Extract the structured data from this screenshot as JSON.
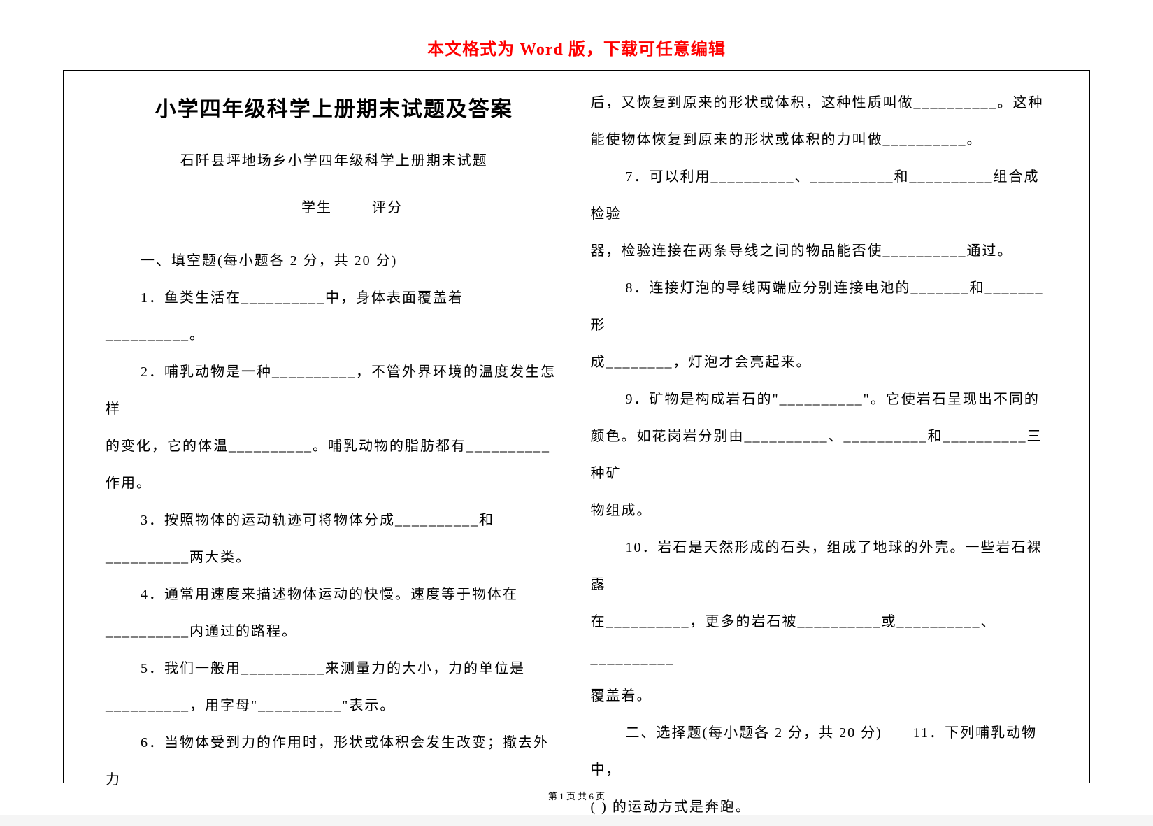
{
  "header_note": "本文格式为 Word 版，下载可任意编辑",
  "title": "小学四年级科学上册期末试题及答案",
  "subtitle": "石阡县坪地场乡小学四年级科学上册期末试题",
  "meta_student": "学生",
  "meta_score": "评分",
  "section1_header": "一、填空题(每小题各 2 分，共 20 分)",
  "q1": "1．鱼类生活在__________中，身体表面覆盖着__________。",
  "q2a": "2．哺乳动物是一种__________，不管外界环境的温度发生怎样",
  "q2b": "的变化，它的体温__________。哺乳动物的脂肪都有__________作用。",
  "q3a": "3．按照物体的运动轨迹可将物体分成__________和",
  "q3b": "__________两大类。",
  "q4a": "4．通常用速度来描述物体运动的快慢。速度等于物体在",
  "q4b": "__________内通过的路程。",
  "q5a": "5．我们一般用__________来测量力的大小，力的单位是",
  "q5b": "__________，用字母\"__________\"表示。",
  "q6a": "6．当物体受到力的作用时，形状或体积会发生改变；撤去外力",
  "q6b": "后，又恢复到原来的形状或体积，这种性质叫做__________。这种",
  "q6c": "能使物体恢复到原来的形状或体积的力叫做__________。",
  "q7a": "7．可以利用__________、__________和__________组合成检验",
  "q7b": "器，检验连接在两条导线之间的物品能否使__________通过。",
  "q8a": "8．连接灯泡的导线两端应分别连接电池的_______和_______形",
  "q8b": "成________，灯泡才会亮起来。",
  "q9a": "9．矿物是构成岩石的\"__________\"。它使岩石呈现出不同的",
  "q9b": "颜色。如花岗岩分别由__________、__________和__________三种矿",
  "q9c": "物组成。",
  "q10a": "10．岩石是天然形成的石头，组成了地球的外壳。一些岩石裸露",
  "q10b": "在__________，更多的岩石被__________或__________、__________",
  "q10c": "覆盖着。",
  "section2_header": "二、选择题(每小题各 2 分，共 20 分)　　11．下列哺乳动物中，",
  "q11b": "( ) 的运动方式是奔跑。",
  "page_num": "第 1 页 共 6 页"
}
